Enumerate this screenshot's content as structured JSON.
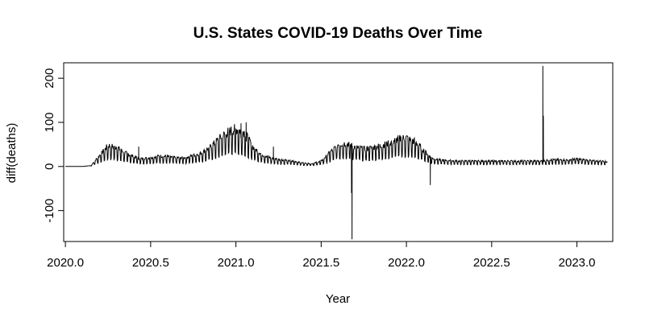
{
  "chart_data": {
    "type": "line",
    "title": "U.S. States COVID-19 Deaths Over Time",
    "xlabel": "Year",
    "ylabel": "diff(deaths)",
    "xlim": [
      2019.99,
      2023.21
    ],
    "ylim": [
      -170,
      235
    ],
    "x_ticks": [
      2020.0,
      2020.5,
      2021.0,
      2021.5,
      2022.0,
      2022.5,
      2023.0
    ],
    "x_tick_labels": [
      "2020.0",
      "2020.5",
      "2021.0",
      "2021.5",
      "2022.0",
      "2022.5",
      "2023.0"
    ],
    "y_ticks": [
      -100,
      0,
      100,
      200
    ],
    "y_tick_labels": [
      "-100",
      "0",
      "100",
      "200"
    ],
    "grid": false,
    "line_color": "#000000",
    "series": [
      {
        "x": [
          2020.0,
          2020.1,
          2020.15,
          2020.2,
          2020.25,
          2020.3,
          2020.35,
          2020.4,
          2020.45,
          2020.5,
          2020.55,
          2020.6,
          2020.65,
          2020.7,
          2020.75,
          2020.8,
          2020.85,
          2020.9,
          2020.95,
          2021.0,
          2021.05,
          2021.1,
          2021.15,
          2021.2,
          2021.25,
          2021.3,
          2021.35,
          2021.4,
          2021.45,
          2021.5,
          2021.55,
          2021.6,
          2021.65,
          2021.7,
          2021.75,
          2021.8,
          2021.85,
          2021.9,
          2021.95,
          2022.0,
          2022.05,
          2022.1,
          2022.15,
          2022.2,
          2022.3,
          2022.4,
          2022.5,
          2022.6,
          2022.7,
          2022.75,
          2022.8,
          2022.85,
          2022.9,
          2022.95,
          2023.0,
          2023.05,
          2023.1,
          2023.15,
          2023.18
        ],
        "y": [
          0,
          0,
          2,
          20,
          38,
          35,
          25,
          18,
          14,
          16,
          19,
          18,
          16,
          16,
          20,
          25,
          35,
          50,
          62,
          68,
          62,
          35,
          22,
          16,
          13,
          11,
          9,
          6,
          5,
          10,
          25,
          40,
          42,
          35,
          32,
          34,
          38,
          42,
          50,
          52,
          45,
          30,
          15,
          12,
          10,
          10,
          10,
          10,
          10,
          10,
          10,
          12,
          12,
          12,
          14,
          12,
          10,
          10,
          8
        ]
      }
    ],
    "peaks": [
      {
        "x": 2020.05,
        "y": 0
      },
      {
        "x": 2020.43,
        "y": 45
      },
      {
        "x": 2021.03,
        "y": 98
      },
      {
        "x": 2021.06,
        "y": 100
      },
      {
        "x": 2021.22,
        "y": 45
      },
      {
        "x": 2021.678,
        "y": -60
      },
      {
        "x": 2021.681,
        "y": -165
      },
      {
        "x": 2022.14,
        "y": -42
      },
      {
        "x": 2022.8,
        "y": 228
      },
      {
        "x": 2022.803,
        "y": 115
      }
    ]
  }
}
